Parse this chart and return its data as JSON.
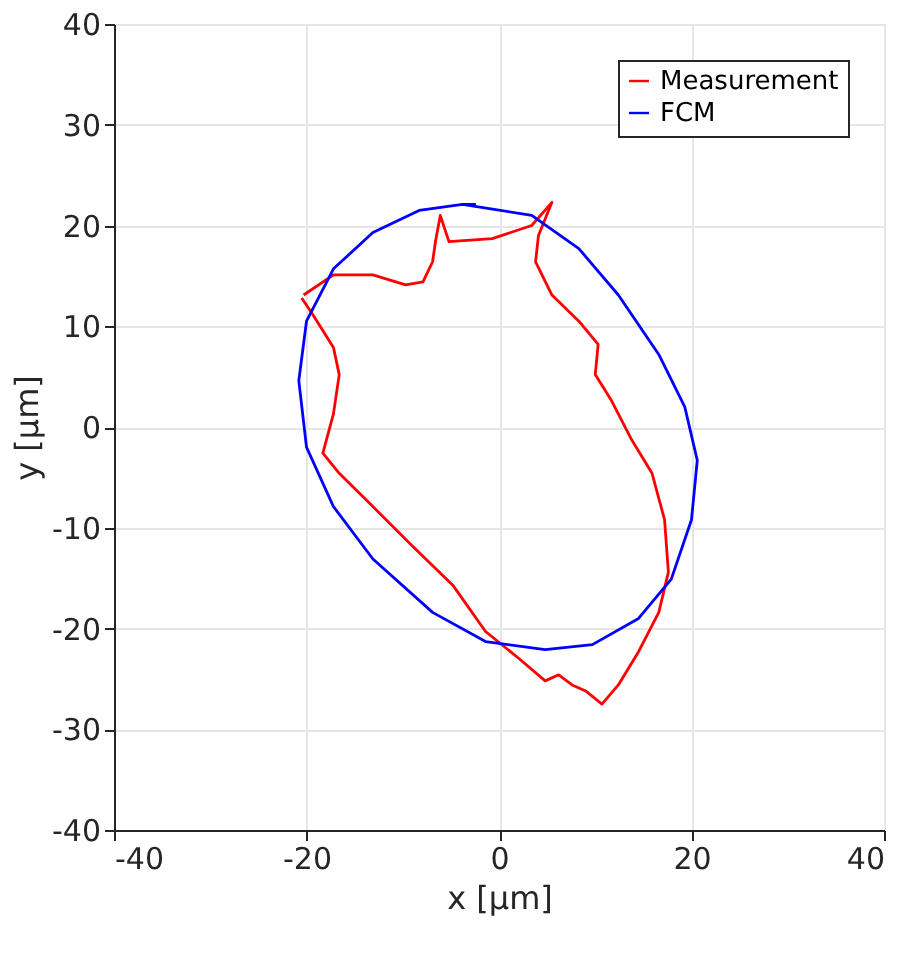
{
  "chart_data": {
    "type": "line",
    "xlabel": "x [µm]",
    "ylabel": "y [µm]",
    "xlim": [
      -40,
      40
    ],
    "ylim": [
      -40,
      40
    ],
    "xticks": [
      -40,
      -20,
      0,
      20,
      40
    ],
    "yticks": [
      -40,
      -30,
      -20,
      -10,
      0,
      10,
      20,
      30,
      40
    ],
    "grid": true,
    "legend": "top right",
    "line_style": "solid",
    "marker": "none",
    "series": [
      {
        "name": "Measurement",
        "color": "#ff0000",
        "x": [
          -20.3,
          -17.2,
          -13.1,
          -9.7,
          -7.9,
          -6.9,
          -6.6,
          -6.1,
          -5.2,
          -0.7,
          3.4,
          5.5,
          4.1,
          3.8,
          5.5,
          8.3,
          10.3,
          10.0,
          11.7,
          13.8,
          15.9,
          17.2,
          17.6,
          16.6,
          14.5,
          12.4,
          10.7,
          9.0,
          7.6,
          6.2,
          4.8,
          2.1,
          -1.4,
          -4.8,
          -9.0,
          -13.1,
          -16.6,
          -18.3,
          -17.2,
          -16.6,
          -17.2,
          -19.3,
          -20.5
        ],
        "values": [
          13.1,
          15.1,
          15.1,
          14.1,
          14.4,
          16.4,
          18.4,
          21.0,
          18.4,
          18.7,
          20.0,
          22.3,
          19.0,
          16.4,
          13.1,
          10.5,
          8.2,
          5.2,
          2.6,
          -1.3,
          -4.6,
          -9.2,
          -14.4,
          -18.4,
          -22.3,
          -25.6,
          -27.5,
          -26.2,
          -25.6,
          -24.6,
          -25.2,
          -23.0,
          -20.3,
          -15.7,
          -11.8,
          -7.9,
          -4.6,
          -2.6,
          1.3,
          5.2,
          7.9,
          11.1,
          12.8
        ]
      },
      {
        "name": "FCM",
        "color": "#0000ff",
        "x": [
          -3.8,
          3.4,
          8.3,
          12.4,
          16.6,
          19.3,
          20.6,
          20.0,
          17.9,
          14.5,
          9.7,
          4.8,
          -1.4,
          -6.9,
          -13.1,
          -17.2,
          -20.0,
          -20.8,
          -20.0,
          -17.2,
          -13.1,
          -8.3,
          -3.8,
          -2.4
        ],
        "values": [
          22.1,
          21.0,
          17.7,
          13.1,
          7.2,
          2.0,
          -3.3,
          -9.2,
          -15.1,
          -19.0,
          -21.6,
          -22.1,
          -21.3,
          -18.4,
          -13.1,
          -7.9,
          -2.0,
          4.6,
          10.5,
          15.7,
          19.3,
          21.5,
          22.1,
          22.1
        ]
      }
    ]
  }
}
